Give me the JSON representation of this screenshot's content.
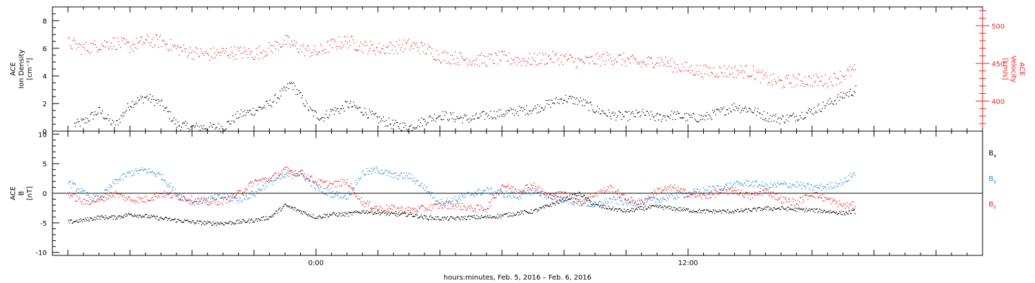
{
  "colors": {
    "black": "#000000",
    "red": "#e8211d",
    "blue": "#1f86d8"
  },
  "chart_data": [
    {
      "type": "scatter",
      "panel": "plasma",
      "ylabel_left": [
        "ACE",
        "Ion Density",
        "[cm⁻³]"
      ],
      "ylabel_right": [
        "ACE",
        "Velocity",
        "[km/s]"
      ],
      "ylim_left": [
        0,
        9
      ],
      "ylim_right": [
        360,
        525
      ],
      "left_ticks": [
        "0",
        "2",
        "4",
        "6",
        "8"
      ],
      "right_ticks": [
        "400",
        "450",
        "500"
      ],
      "series": [
        {
          "axis": "left",
          "color": "black",
          "points": [
            [
              -7.8,
              0.5
            ],
            [
              -7.5,
              0.7
            ],
            [
              -7,
              1.5
            ],
            [
              -6.5,
              0.4
            ],
            [
              -6,
              2
            ],
            [
              -5.5,
              2.5
            ],
            [
              -5,
              2
            ],
            [
              -4.5,
              0.5
            ],
            [
              -4,
              0.3
            ],
            [
              -3.5,
              0.3
            ],
            [
              -3,
              0.3
            ],
            [
              -2.5,
              1.2
            ],
            [
              -2,
              1.5
            ],
            [
              -1.5,
              2
            ],
            [
              -1,
              3
            ],
            [
              -0.8,
              3.5
            ],
            [
              -0.5,
              2.5
            ],
            [
              -0.2,
              1.5
            ],
            [
              0,
              1.2
            ],
            [
              0.2,
              1
            ],
            [
              0.5,
              1.5
            ],
            [
              0.8,
              1.6
            ],
            [
              1,
              2
            ],
            [
              1.5,
              1.5
            ],
            [
              2,
              0.9
            ],
            [
              2.5,
              0.5
            ],
            [
              3,
              0.3
            ],
            [
              3.5,
              0.8
            ],
            [
              4,
              1.2
            ],
            [
              4.5,
              1
            ],
            [
              5,
              0.9
            ],
            [
              5.5,
              1.2
            ],
            [
              6,
              1.3
            ],
            [
              6.5,
              1.5
            ],
            [
              7,
              1.6
            ],
            [
              7.5,
              2
            ],
            [
              8,
              2.4
            ],
            [
              8.5,
              2.2
            ],
            [
              9,
              1.6
            ],
            [
              9.5,
              1.2
            ],
            [
              10,
              1.1
            ],
            [
              10.5,
              1.3
            ],
            [
              11,
              1
            ],
            [
              11.5,
              1.2
            ],
            [
              12,
              1
            ],
            [
              12.5,
              1
            ],
            [
              13,
              1.4
            ],
            [
              13.5,
              1.8
            ],
            [
              14,
              1.6
            ],
            [
              14.5,
              1.1
            ],
            [
              15,
              0.9
            ],
            [
              15.5,
              1.1
            ],
            [
              16,
              1.5
            ],
            [
              16.5,
              2
            ],
            [
              17,
              2.6
            ],
            [
              17.4,
              3
            ]
          ]
        },
        {
          "axis": "right",
          "color": "red",
          "points": [
            [
              -8,
              478
            ],
            [
              -7.5,
              470
            ],
            [
              -7,
              475
            ],
            [
              -6.5,
              478
            ],
            [
              -6,
              473
            ],
            [
              -5.5,
              480
            ],
            [
              -5,
              480
            ],
            [
              -4.5,
              470
            ],
            [
              -4,
              465
            ],
            [
              -3.5,
              462
            ],
            [
              -3,
              465
            ],
            [
              -2.5,
              465
            ],
            [
              -2,
              463
            ],
            [
              -1.5,
              470
            ],
            [
              -1,
              480
            ],
            [
              -0.5,
              470
            ],
            [
              0,
              465
            ],
            [
              0.5,
              475
            ],
            [
              1,
              480
            ],
            [
              1.5,
              473
            ],
            [
              2,
              470
            ],
            [
              2.5,
              472
            ],
            [
              3,
              475
            ],
            [
              3.5,
              470
            ],
            [
              4,
              460
            ],
            [
              4.5,
              458
            ],
            [
              5,
              455
            ],
            [
              5.5,
              455
            ],
            [
              6,
              458
            ],
            [
              6.5,
              455
            ],
            [
              7,
              455
            ],
            [
              7.5,
              458
            ],
            [
              8,
              457
            ],
            [
              8.5,
              452
            ],
            [
              9,
              455
            ],
            [
              9.5,
              458
            ],
            [
              10,
              455
            ],
            [
              10.5,
              450
            ],
            [
              11,
              455
            ],
            [
              11.5,
              448
            ],
            [
              12,
              443
            ],
            [
              12.5,
              440
            ],
            [
              13,
              440
            ],
            [
              13.5,
              440
            ],
            [
              14,
              440
            ],
            [
              14.5,
              430
            ],
            [
              15,
              425
            ],
            [
              15.5,
              428
            ],
            [
              16,
              428
            ],
            [
              16.5,
              427
            ],
            [
              17,
              435
            ],
            [
              17.4,
              442
            ]
          ]
        }
      ]
    },
    {
      "type": "scatter",
      "panel": "magnetic",
      "ylabel_left": [
        "ACE",
        "B",
        "[nT]"
      ],
      "ylim_left": [
        -10.5,
        10.5
      ],
      "left_ticks": [
        "-10",
        "-5",
        "0",
        "5",
        "10"
      ],
      "legend": [
        {
          "text": "B",
          "sub": "x",
          "color": "black"
        },
        {
          "text": "B",
          "sub": "y",
          "color": "blue"
        },
        {
          "text": "B",
          "sub": "z",
          "color": "red"
        }
      ],
      "series": [
        {
          "color": "black",
          "points": [
            [
              -8,
              -4.8
            ],
            [
              -7.5,
              -4.5
            ],
            [
              -7,
              -4
            ],
            [
              -6.5,
              -4
            ],
            [
              -6,
              -3.5
            ],
            [
              -5.5,
              -3.8
            ],
            [
              -5,
              -4.2
            ],
            [
              -4.5,
              -4.5
            ],
            [
              -4,
              -4.8
            ],
            [
              -3.5,
              -5
            ],
            [
              -3,
              -5
            ],
            [
              -2.5,
              -4.8
            ],
            [
              -2,
              -4.5
            ],
            [
              -1.5,
              -4
            ],
            [
              -1,
              -2
            ],
            [
              -0.5,
              -3
            ],
            [
              0,
              -4
            ],
            [
              0.5,
              -3.5
            ],
            [
              1,
              -3.5
            ],
            [
              1.5,
              -3
            ],
            [
              2,
              -3.2
            ],
            [
              2.5,
              -3.5
            ],
            [
              3,
              -3.5
            ],
            [
              3.5,
              -4
            ],
            [
              4,
              -4.2
            ],
            [
              4.5,
              -4.2
            ],
            [
              5,
              -4
            ],
            [
              5.5,
              -4
            ],
            [
              6,
              -3.7
            ],
            [
              6.5,
              -3.3
            ],
            [
              7,
              -3
            ],
            [
              7.5,
              -2
            ],
            [
              8,
              -1
            ],
            [
              8.5,
              0
            ],
            [
              9,
              -2
            ],
            [
              9.5,
              -2.5
            ],
            [
              10,
              -3
            ],
            [
              10.5,
              -2.5
            ],
            [
              11,
              -2.2
            ],
            [
              11.5,
              -2.5
            ],
            [
              12,
              -2.8
            ],
            [
              12.5,
              -3
            ],
            [
              13,
              -3
            ],
            [
              13.5,
              -3
            ],
            [
              14,
              -2.8
            ],
            [
              14.5,
              -2.5
            ],
            [
              15,
              -2.5
            ],
            [
              15.5,
              -2.7
            ],
            [
              16,
              -2.8
            ],
            [
              16.5,
              -3
            ],
            [
              17,
              -3.3
            ],
            [
              17.4,
              -3
            ]
          ]
        },
        {
          "color": "blue",
          "points": [
            [
              -8,
              2
            ],
            [
              -7.5,
              0
            ],
            [
              -7,
              -1
            ],
            [
              -6.5,
              2
            ],
            [
              -6,
              3.5
            ],
            [
              -5.5,
              4
            ],
            [
              -5,
              3
            ],
            [
              -4.5,
              0
            ],
            [
              -4,
              -1.5
            ],
            [
              -3.5,
              -1
            ],
            [
              -3,
              -0.5
            ],
            [
              -2.5,
              -1
            ],
            [
              -2,
              0
            ],
            [
              -1.5,
              2
            ],
            [
              -1,
              3
            ],
            [
              -0.5,
              3.5
            ],
            [
              0,
              1
            ],
            [
              0.5,
              0
            ],
            [
              1,
              -0.5
            ],
            [
              1.5,
              3.5
            ],
            [
              2,
              4
            ],
            [
              2.5,
              3
            ],
            [
              3,
              3
            ],
            [
              3.5,
              1
            ],
            [
              4,
              -1.5
            ],
            [
              4.5,
              -1
            ],
            [
              5,
              0
            ],
            [
              5.5,
              0.5
            ],
            [
              6,
              0
            ],
            [
              6.5,
              -0.5
            ],
            [
              7,
              0.5
            ],
            [
              7.5,
              -0.5
            ],
            [
              8,
              -1
            ],
            [
              8.5,
              -1.5
            ],
            [
              9,
              -2
            ],
            [
              9.5,
              -1
            ],
            [
              10,
              -1.5
            ],
            [
              10.5,
              -1.5
            ],
            [
              11,
              -1
            ],
            [
              11.5,
              -0.5
            ],
            [
              12,
              0
            ],
            [
              12.5,
              0.5
            ],
            [
              13,
              1
            ],
            [
              13.5,
              1.5
            ],
            [
              14,
              1.8
            ],
            [
              14.5,
              1.2
            ],
            [
              15,
              1.5
            ],
            [
              15.5,
              1.5
            ],
            [
              16,
              1
            ],
            [
              16.5,
              1.2
            ],
            [
              17,
              2
            ],
            [
              17.4,
              3.5
            ]
          ]
        },
        {
          "color": "red",
          "points": [
            [
              -8,
              0
            ],
            [
              -7.5,
              -1.5
            ],
            [
              -7,
              -1
            ],
            [
              -6.5,
              0
            ],
            [
              -6,
              -1
            ],
            [
              -5.5,
              -1
            ],
            [
              -5,
              0
            ],
            [
              -4.5,
              -0.5
            ],
            [
              -4,
              -1
            ],
            [
              -3.5,
              -1.5
            ],
            [
              -3,
              -1.2
            ],
            [
              -2.5,
              0
            ],
            [
              -2,
              2
            ],
            [
              -1.5,
              2.5
            ],
            [
              -1,
              4
            ],
            [
              -0.5,
              3.5
            ],
            [
              0,
              2
            ],
            [
              0.5,
              1.5
            ],
            [
              1,
              2
            ],
            [
              1.5,
              -1.5
            ],
            [
              2,
              -2.5
            ],
            [
              2.5,
              -2.5
            ],
            [
              3,
              -2.8
            ],
            [
              3.5,
              -2.5
            ],
            [
              4,
              -2
            ],
            [
              4.5,
              -2
            ],
            [
              5,
              -2.5
            ],
            [
              5.5,
              -2.5
            ],
            [
              6,
              1.5
            ],
            [
              6.5,
              0.5
            ],
            [
              7,
              1.5
            ],
            [
              7.5,
              -0.5
            ],
            [
              8,
              0
            ],
            [
              8.5,
              -1.5
            ],
            [
              9,
              0
            ],
            [
              9.5,
              1
            ],
            [
              10,
              -1
            ],
            [
              10.5,
              -1.5
            ],
            [
              11,
              0.5
            ],
            [
              11.5,
              1
            ],
            [
              12,
              0
            ],
            [
              12.5,
              -0.5
            ],
            [
              13,
              0.2
            ],
            [
              13.5,
              0.5
            ],
            [
              14,
              -0.5
            ],
            [
              14.5,
              0.5
            ],
            [
              15,
              -1
            ],
            [
              15.5,
              -1.5
            ],
            [
              16,
              0
            ],
            [
              16.5,
              -1
            ],
            [
              17,
              -2
            ],
            [
              17.4,
              -2
            ]
          ]
        }
      ]
    }
  ],
  "x_axis": {
    "range_hours": [
      -8.5,
      21.5
    ],
    "tick_labels": [
      {
        "hour": 0,
        "label": "0:00"
      },
      {
        "hour": 12,
        "label": "12:00"
      }
    ],
    "xlabel": "hours:minutes, Feb.  5, 2016 – Feb.  6, 2016"
  }
}
